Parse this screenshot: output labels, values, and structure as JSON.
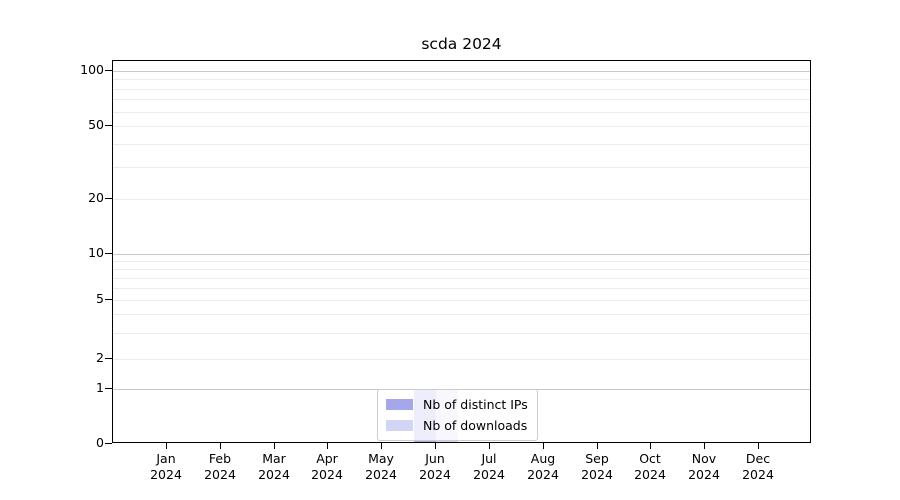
{
  "chart_data": {
    "type": "bar",
    "title": "scda 2024",
    "xlabel": "",
    "ylabel": "",
    "x_months": [
      "Jan",
      "Feb",
      "Mar",
      "Apr",
      "May",
      "Jun",
      "Jul",
      "Aug",
      "Sep",
      "Oct",
      "Nov",
      "Dec"
    ],
    "x_year": "2024",
    "categories": [
      "Jan 2024",
      "Feb 2024",
      "Mar 2024",
      "Apr 2024",
      "May 2024",
      "Jun 2024",
      "Jul 2024",
      "Aug 2024",
      "Sep 2024",
      "Oct 2024",
      "Nov 2024",
      "Dec 2024"
    ],
    "series": [
      {
        "name": "Nb of distinct IPs",
        "color": "#a6a6ea",
        "values": [
          0,
          0,
          0,
          0,
          0,
          1,
          0,
          0,
          0,
          0,
          0,
          0
        ]
      },
      {
        "name": "Nb of downloads",
        "color": "#d4d4f5",
        "values": [
          0,
          0,
          0,
          0,
          0,
          1,
          0,
          0,
          0,
          0,
          0,
          0
        ]
      }
    ],
    "yscale": "symlog",
    "ylim": [
      0,
      115
    ],
    "y_major_ticks": [
      0,
      1,
      2,
      5,
      10,
      20,
      50,
      100
    ],
    "y_minor_ticks": [
      3,
      4,
      6,
      7,
      8,
      9,
      30,
      40,
      60,
      70,
      80,
      90
    ],
    "emphasized_gridlines": [
      1,
      10,
      100
    ],
    "grid": "horizontal",
    "legend_position": "lower-center"
  },
  "colors": {
    "bar_distinct_ips": "#a6a6ea",
    "bar_downloads": "#d4d4f5",
    "grid_minor": "#ececec",
    "grid_major": "#c9c9c9",
    "axis": "#000000",
    "legend_border": "#cccccc",
    "background": "#ffffff"
  }
}
